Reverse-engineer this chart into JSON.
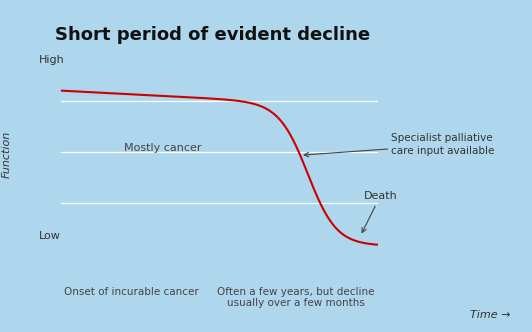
{
  "title": "Short period of evident decline",
  "bg_color": "#aed6ec",
  "plot_bg_color": "#aed6ec",
  "curve_color": "#cc0000",
  "grid_color": "#ffffff",
  "ylabel": "Function",
  "xlabel_right": "Time →",
  "y_high_label": "High",
  "y_low_label": "Low",
  "annotation_cancer": "Mostly cancer",
  "annotation_palliative": "Specialist palliative\ncare input available",
  "annotation_death": "Death",
  "annotation_onset": "Onset of incurable cancer",
  "annotation_time": "Often a few years, but decline\nusually over a few months",
  "title_fontsize": 13,
  "label_fontsize": 8,
  "annotation_fontsize": 8,
  "small_fontsize": 7.5
}
